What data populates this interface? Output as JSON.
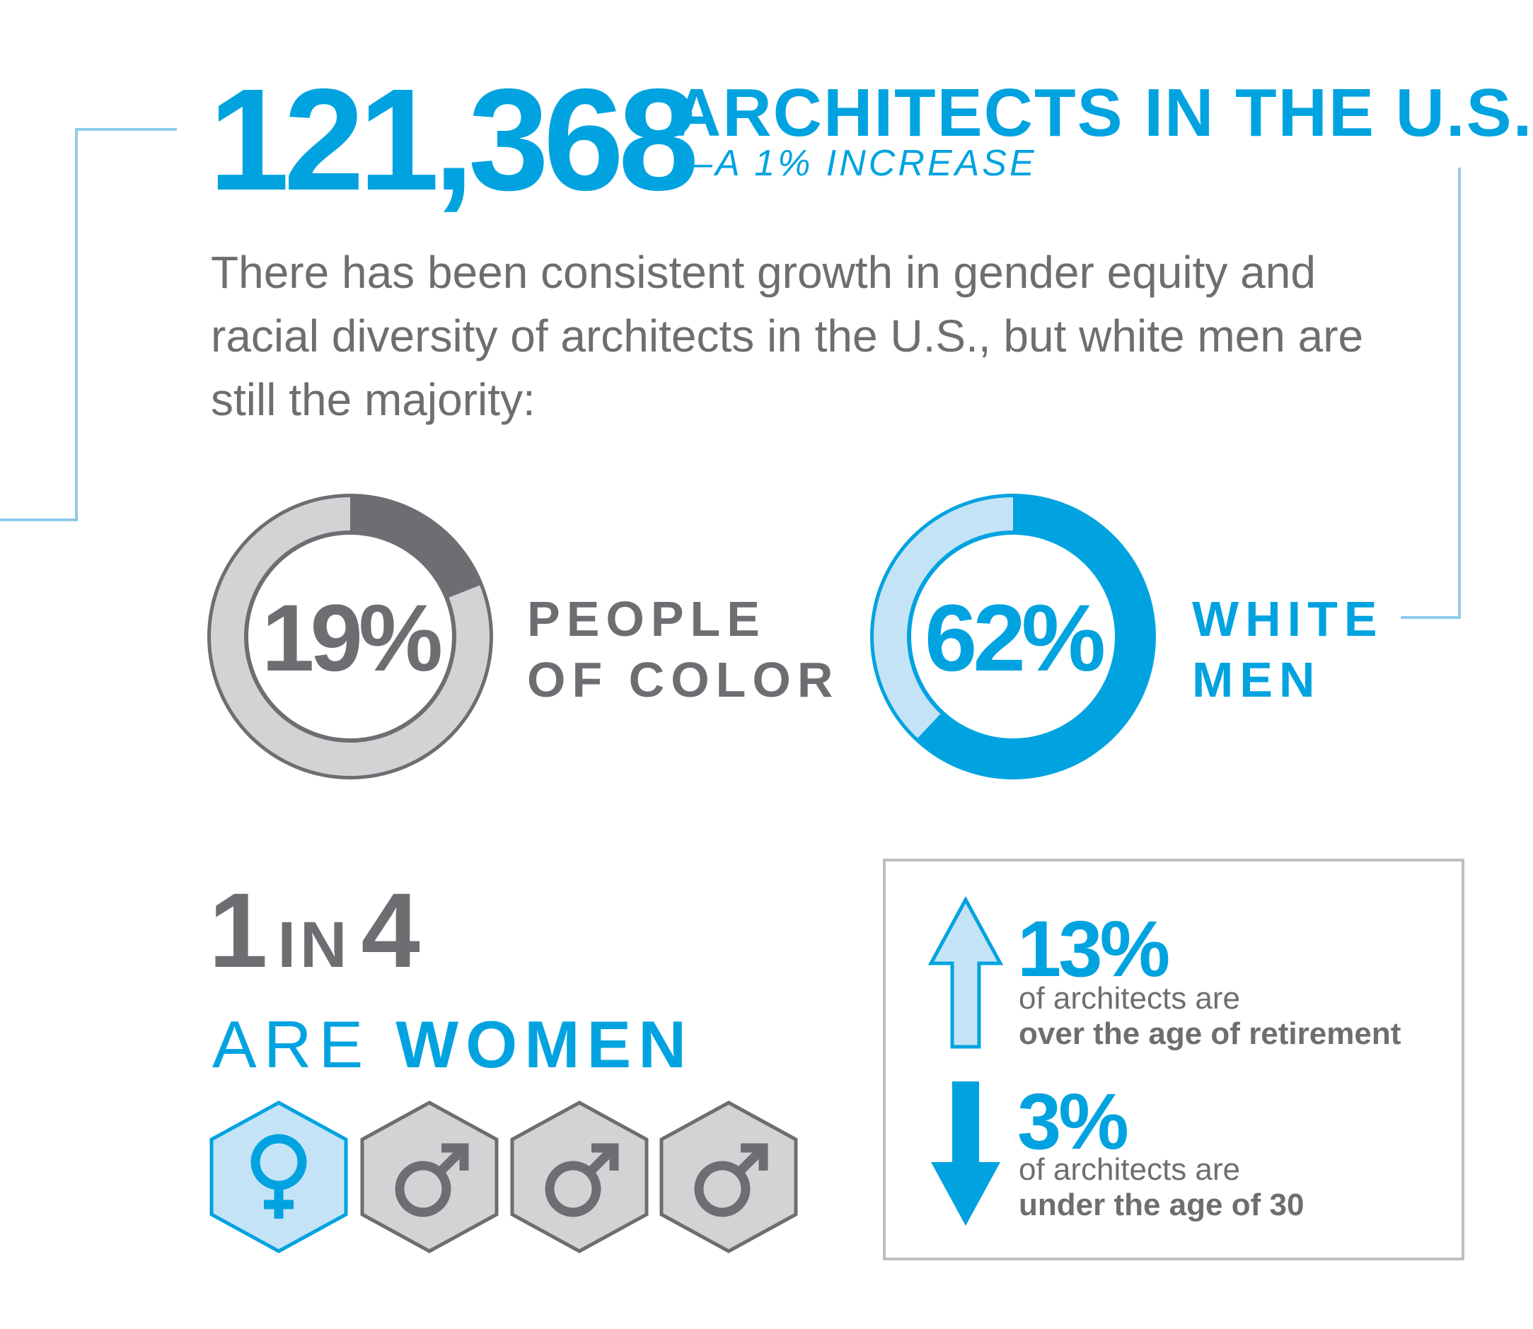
{
  "header": {
    "count": "121,368",
    "title": "ARCHITECTS IN THE U.S.",
    "subtitle": "—A 1% INCREASE"
  },
  "intro": {
    "text": "There has been consistent growth in gender equity and racial diversity of architects in the U.S., but white men are still the majority:"
  },
  "donuts": [
    {
      "percent_text": "19%",
      "value": 0.19,
      "label_line1": "PEOPLE",
      "label_line2": "OF COLOR",
      "color": "#6d6e71",
      "track_color": "#d1d3d4"
    },
    {
      "percent_text": "62%",
      "value": 0.62,
      "label_line1": "WHITE",
      "label_line2": "MEN",
      "color": "#00a3e0",
      "track_color": "#c5e3f6"
    }
  ],
  "women": {
    "one": "1",
    "in": "IN",
    "four": "4",
    "are": "ARE",
    "women": "WOMEN",
    "icons": [
      "female-icon",
      "male-icon",
      "male-icon",
      "male-icon"
    ]
  },
  "age": {
    "over": {
      "percent": "13%",
      "line1": "of architects are",
      "line2": "over the age of retirement",
      "icon": "arrow-up-icon"
    },
    "under": {
      "percent": "3%",
      "line1": "of architects are",
      "line2": "under the age of 30",
      "icon": "arrow-down-icon"
    }
  },
  "colors": {
    "blue": "#00a3e0",
    "light_blue": "#c5e3f6",
    "gray": "#6d6e71",
    "light_gray": "#d1d3d4",
    "bracket": "#8fcbeb"
  }
}
